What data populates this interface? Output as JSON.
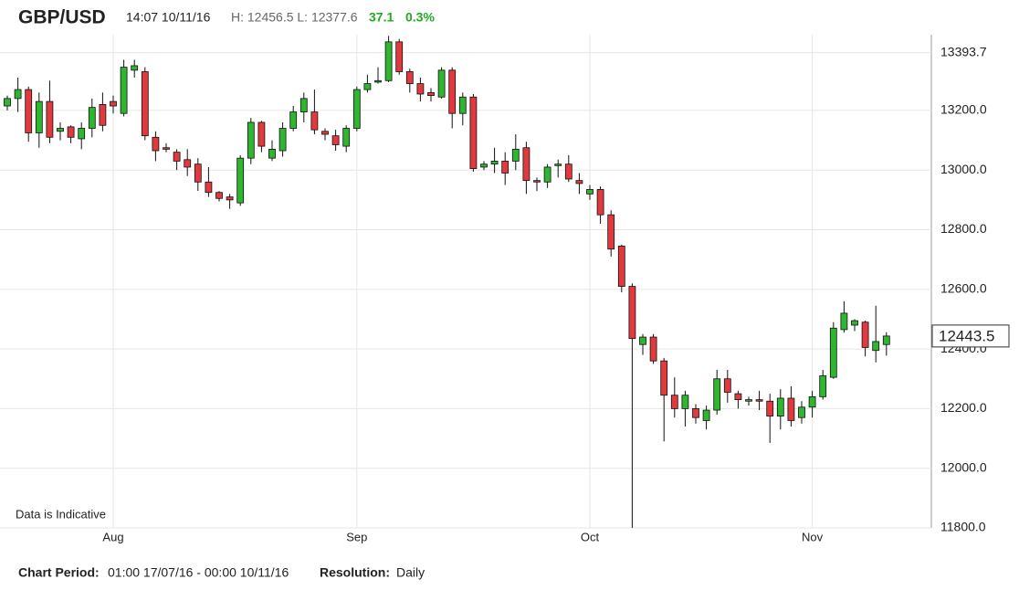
{
  "header": {
    "symbol": "GBP/USD",
    "time": "14:07 10/11/16",
    "range": "H: 12456.5 L: 12377.6",
    "change": "37.1",
    "change_pct": "0.3%"
  },
  "footer": {
    "period_label": "Chart Period:",
    "period": "01:00 17/07/16 - 00:00 10/11/16",
    "resolution_label": "Resolution:",
    "resolution": "Daily"
  },
  "chart_data": {
    "type": "candlestick",
    "annotation": "Data is Indicative",
    "categories": [
      null,
      null,
      null,
      null,
      null,
      null,
      null,
      null,
      null,
      null,
      "Aug",
      null,
      null,
      null,
      null,
      null,
      null,
      null,
      null,
      null,
      null,
      null,
      null,
      null,
      null,
      null,
      null,
      null,
      null,
      null,
      null,
      null,
      null,
      "Sep",
      null,
      null,
      null,
      null,
      null,
      null,
      null,
      null,
      null,
      null,
      null,
      null,
      null,
      null,
      null,
      null,
      null,
      null,
      null,
      null,
      null,
      "Oct",
      null,
      null,
      null,
      null,
      null,
      null,
      null,
      null,
      null,
      null,
      null,
      null,
      null,
      null,
      null,
      null,
      null,
      null,
      null,
      null,
      "Nov",
      null,
      null,
      null,
      null,
      null,
      null,
      null
    ],
    "open": [
      13215,
      13240,
      13270,
      13125,
      13230,
      13130,
      13145,
      13105,
      13140,
      13220,
      13230,
      13190,
      13335,
      13330,
      13110,
      13075,
      13060,
      13035,
      13020,
      12960,
      12925,
      12910,
      12890,
      13040,
      13160,
      13040,
      13065,
      13140,
      13195,
      13195,
      13130,
      13115,
      13080,
      13140,
      13270,
      13295,
      13300,
      13430,
      13330,
      13290,
      13260,
      13245,
      13335,
      13190,
      13245,
      13010,
      13020,
      13030,
      13030,
      13075,
      12965,
      12960,
      13015,
      13020,
      12965,
      12920,
      12935,
      12850,
      12745,
      12610,
      12415,
      12440,
      12360,
      12245,
      12200,
      12200,
      12160,
      12195,
      12300,
      12250,
      12225,
      12230,
      12225,
      12175,
      12235,
      12170,
      12205,
      12240,
      12305,
      12465,
      12480,
      12490,
      12395,
      12415
    ],
    "high": [
      13250,
      13310,
      13280,
      13260,
      13300,
      13160,
      13150,
      13160,
      13240,
      13260,
      13250,
      13370,
      13370,
      13345,
      13130,
      13090,
      13070,
      13070,
      13040,
      13010,
      12930,
      12920,
      13050,
      13175,
      13165,
      13100,
      13160,
      13215,
      13260,
      13270,
      13140,
      13135,
      13150,
      13280,
      13320,
      13345,
      13450,
      13440,
      13340,
      13310,
      13275,
      13345,
      13345,
      13260,
      13255,
      13030,
      13075,
      13060,
      13120,
      13095,
      12975,
      13020,
      13035,
      13050,
      12990,
      12950,
      12945,
      12865,
      12750,
      12620,
      12450,
      12450,
      12370,
      12305,
      12260,
      12215,
      12210,
      12330,
      12330,
      12260,
      12240,
      12260,
      12250,
      12265,
      12275,
      12225,
      12260,
      12330,
      12490,
      12560,
      12500,
      12495,
      12545,
      12456.5
    ],
    "low": [
      13200,
      13195,
      13095,
      13075,
      13090,
      13100,
      13090,
      13070,
      13110,
      13130,
      13190,
      13180,
      13310,
      13100,
      13030,
      13060,
      13000,
      12980,
      12930,
      12910,
      12895,
      12870,
      12880,
      13020,
      13060,
      13030,
      13045,
      13130,
      13160,
      13120,
      13100,
      13065,
      13060,
      13130,
      13260,
      13290,
      13295,
      13320,
      13260,
      13230,
      13230,
      13240,
      13140,
      13150,
      12995,
      13000,
      12990,
      12950,
      13000,
      12920,
      12930,
      12940,
      12975,
      12960,
      12920,
      12900,
      12820,
      12710,
      12590,
      11800,
      12380,
      12350,
      12090,
      12170,
      12140,
      12150,
      12130,
      12180,
      12220,
      12200,
      12210,
      12195,
      12085,
      12130,
      12140,
      12150,
      12170,
      12230,
      12300,
      12455,
      12460,
      12375,
      12355,
      12377.6
    ],
    "close": [
      13240,
      13270,
      13125,
      13230,
      13110,
      13140,
      13110,
      13140,
      13210,
      13150,
      13215,
      13345,
      13350,
      13115,
      13065,
      13070,
      13030,
      13010,
      12960,
      12925,
      12905,
      12900,
      13040,
      13160,
      13080,
      13070,
      13140,
      13195,
      13240,
      13135,
      13120,
      13085,
      13140,
      13270,
      13290,
      13300,
      13430,
      13330,
      13290,
      13255,
      13250,
      13335,
      13190,
      13245,
      13005,
      13020,
      13030,
      12990,
      13070,
      12965,
      12960,
      13010,
      13020,
      12970,
      12955,
      12935,
      12850,
      12735,
      12610,
      12435,
      12440,
      12360,
      12245,
      12200,
      12245,
      12170,
      12195,
      12300,
      12255,
      12230,
      12230,
      12225,
      12175,
      12235,
      12160,
      12205,
      12240,
      12310,
      12470,
      12520,
      12495,
      12405,
      12425,
      12443.5
    ],
    "up_color": "#2fb52f",
    "down_color": "#e0393e",
    "ylim": [
      11800,
      13454
    ],
    "yticks": [
      {
        "value": 11800,
        "label": "11800.0"
      },
      {
        "value": 12000,
        "label": "12000.0"
      },
      {
        "value": 12200,
        "label": "12200.0"
      },
      {
        "value": 12400,
        "label": "12400.0"
      },
      {
        "value": 12600,
        "label": "12600.0"
      },
      {
        "value": 12800,
        "label": "12800.0"
      },
      {
        "value": 13000,
        "label": "13000.0"
      },
      {
        "value": 13200,
        "label": "13200.0"
      },
      13393.7
    ],
    "last_price": 12443.5,
    "grid": true
  }
}
